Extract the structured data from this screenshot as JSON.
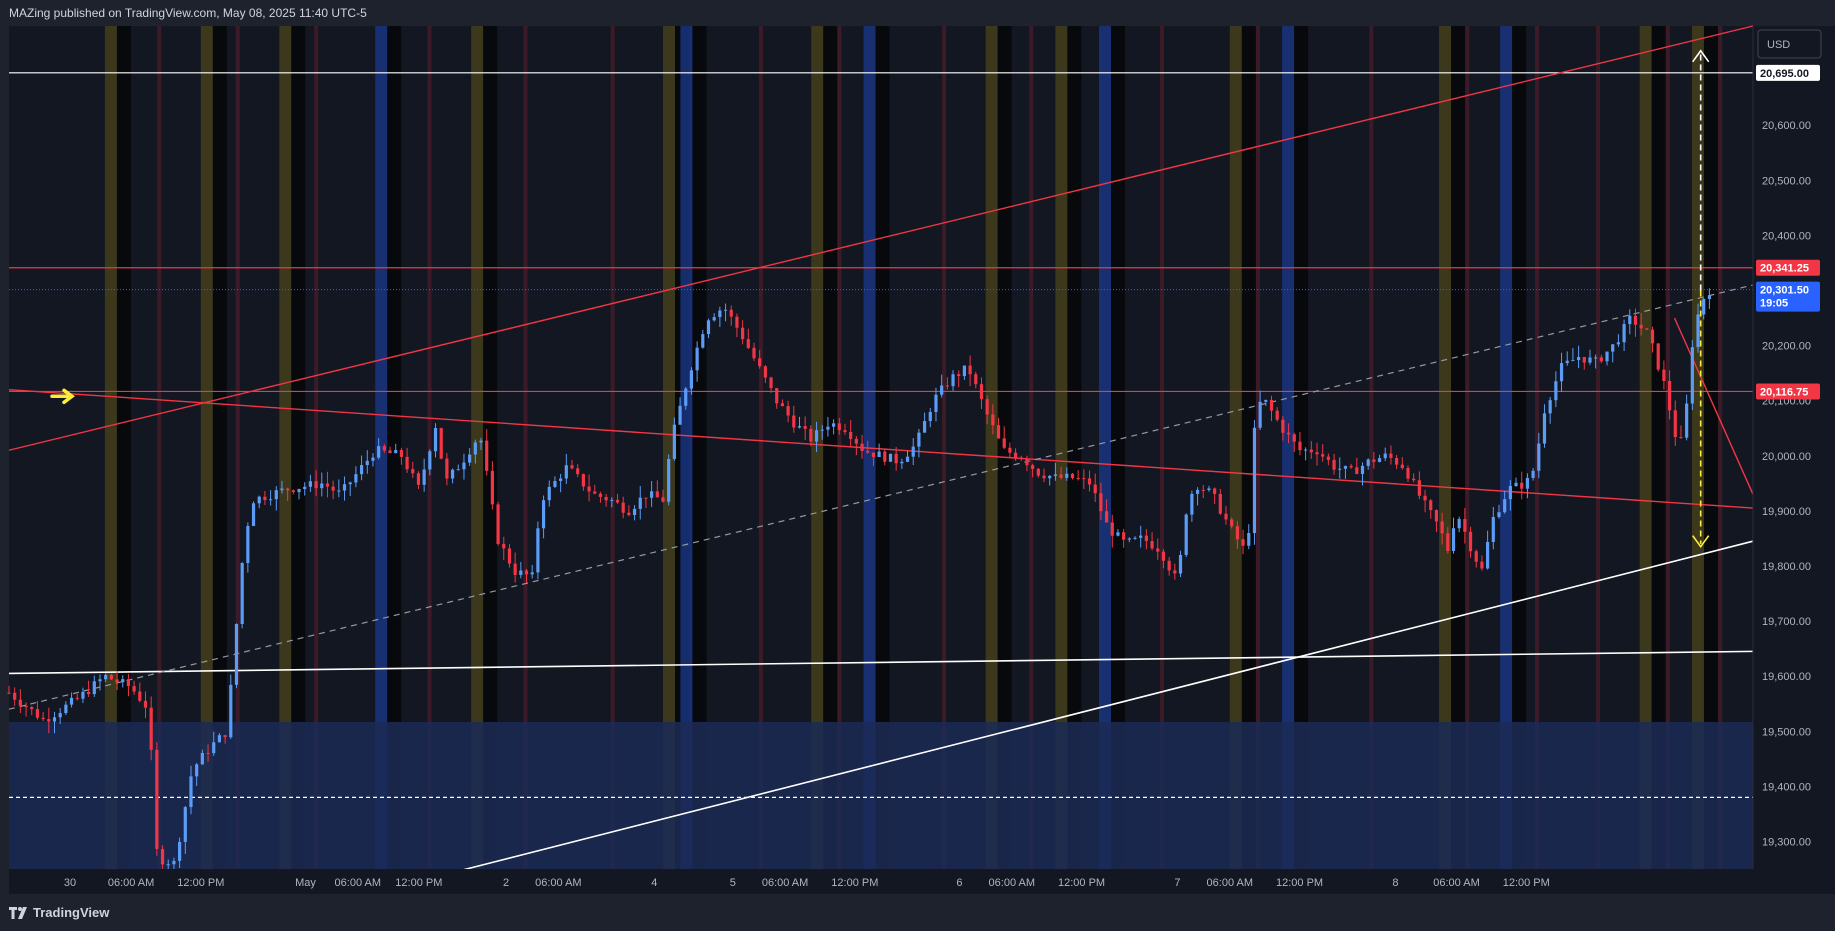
{
  "header": {
    "publish_line": "MAZing published on TradingView.com, May 08, 2025 11:40 UTC-5"
  },
  "footer": {
    "brand": "TradingView"
  },
  "currency_button": {
    "label": "USD"
  },
  "colors": {
    "background": "#131722",
    "bull": "#5b9cf6",
    "bear": "#f23645",
    "red_line": "#f23645",
    "white_line": "#ffffff",
    "last_price_tag": "#2962ff",
    "yellow_arrow": "#ffeb3b",
    "session_yellow": "#4a4419",
    "session_blue": "#1b3a8c",
    "session_red": "#4a1e2a"
  },
  "price_axis": {
    "ticks": [
      "20,600.00",
      "20,500.00",
      "20,400.00",
      "20,200.00",
      "20,100.00",
      "20,000.00",
      "19,900.00",
      "19,800.00",
      "19,700.00",
      "19,600.00",
      "19,500.00",
      "19,400.00",
      "19,300.00"
    ]
  },
  "price_tags": [
    {
      "label": "20,695.00",
      "style": "white"
    },
    {
      "label": "20,341.25",
      "style": "red"
    },
    {
      "label": "20,116.75",
      "style": "red"
    }
  ],
  "last_price": {
    "price": "20,301.50",
    "countdown": "19:05"
  },
  "time_axis": {
    "labels": [
      "30",
      "06:00 AM",
      "12:00 PM",
      "May",
      "06:00 AM",
      "12:00 PM",
      "2",
      "06:00 AM",
      "4",
      "5",
      "06:00 AM",
      "12:00 PM",
      "6",
      "06:00 AM",
      "12:00 PM",
      "7",
      "06:00 AM",
      "12:00 PM",
      "8",
      "06:00 AM",
      "12:00 PM"
    ]
  },
  "chart_data": {
    "type": "candlestick",
    "symbol_currency": "USD",
    "x_labels": [
      "30",
      "06:00 AM",
      "12:00 PM",
      "May",
      "06:00 AM",
      "12:00 PM",
      "2",
      "06:00 AM",
      "4",
      "5",
      "06:00 AM",
      "12:00 PM",
      "6",
      "06:00 AM",
      "12:00 PM",
      "7",
      "06:00 AM",
      "12:00 PM",
      "8",
      "06:00 AM",
      "12:00 PM"
    ],
    "y_range": [
      19250,
      20780
    ],
    "close_path": [
      [
        0,
        19570
      ],
      [
        0.02,
        19520
      ],
      [
        0.04,
        19560
      ],
      [
        0.055,
        19600
      ],
      [
        0.07,
        19580
      ],
      [
        0.08,
        19540
      ],
      [
        0.085,
        19270
      ],
      [
        0.095,
        19260
      ],
      [
        0.105,
        19430
      ],
      [
        0.115,
        19470
      ],
      [
        0.125,
        19500
      ],
      [
        0.13,
        19680
      ],
      [
        0.135,
        19850
      ],
      [
        0.14,
        19920
      ],
      [
        0.16,
        19940
      ],
      [
        0.18,
        19950
      ],
      [
        0.19,
        19930
      ],
      [
        0.2,
        19970
      ],
      [
        0.21,
        20010
      ],
      [
        0.225,
        20000
      ],
      [
        0.235,
        19940
      ],
      [
        0.245,
        20060
      ],
      [
        0.25,
        19950
      ],
      [
        0.26,
        19990
      ],
      [
        0.27,
        20040
      ],
      [
        0.28,
        19850
      ],
      [
        0.29,
        19790
      ],
      [
        0.3,
        19780
      ],
      [
        0.305,
        19920
      ],
      [
        0.32,
        19980
      ],
      [
        0.335,
        19930
      ],
      [
        0.345,
        19920
      ],
      [
        0.355,
        19900
      ],
      [
        0.365,
        19930
      ],
      [
        0.375,
        19920
      ],
      [
        0.38,
        20030
      ],
      [
        0.39,
        20150
      ],
      [
        0.4,
        20250
      ],
      [
        0.41,
        20270
      ],
      [
        0.42,
        20220
      ],
      [
        0.43,
        20160
      ],
      [
        0.44,
        20100
      ],
      [
        0.45,
        20060
      ],
      [
        0.46,
        20030
      ],
      [
        0.47,
        20060
      ],
      [
        0.48,
        20050
      ],
      [
        0.49,
        20010
      ],
      [
        0.5,
        20000
      ],
      [
        0.51,
        19990
      ],
      [
        0.52,
        20020
      ],
      [
        0.53,
        20100
      ],
      [
        0.54,
        20140
      ],
      [
        0.55,
        20160
      ],
      [
        0.56,
        20080
      ],
      [
        0.57,
        20010
      ],
      [
        0.58,
        20000
      ],
      [
        0.59,
        19970
      ],
      [
        0.6,
        19960
      ],
      [
        0.61,
        19960
      ],
      [
        0.62,
        19950
      ],
      [
        0.63,
        19870
      ],
      [
        0.64,
        19840
      ],
      [
        0.65,
        19850
      ],
      [
        0.66,
        19830
      ],
      [
        0.67,
        19770
      ],
      [
        0.675,
        19900
      ],
      [
        0.68,
        19950
      ],
      [
        0.69,
        19930
      ],
      [
        0.7,
        19870
      ],
      [
        0.71,
        19820
      ],
      [
        0.715,
        20090
      ],
      [
        0.72,
        20100
      ],
      [
        0.73,
        20050
      ],
      [
        0.74,
        20010
      ],
      [
        0.75,
        20010
      ],
      [
        0.76,
        19980
      ],
      [
        0.77,
        19970
      ],
      [
        0.78,
        19990
      ],
      [
        0.79,
        20000
      ],
      [
        0.8,
        19980
      ],
      [
        0.81,
        19920
      ],
      [
        0.82,
        19870
      ],
      [
        0.825,
        19830
      ],
      [
        0.83,
        19900
      ],
      [
        0.84,
        19820
      ],
      [
        0.845,
        19790
      ],
      [
        0.85,
        19880
      ],
      [
        0.86,
        19940
      ],
      [
        0.87,
        19950
      ],
      [
        0.875,
        19980
      ],
      [
        0.88,
        20080
      ],
      [
        0.89,
        20160
      ],
      [
        0.9,
        20180
      ],
      [
        0.91,
        20170
      ],
      [
        0.92,
        20200
      ],
      [
        0.93,
        20250
      ],
      [
        0.94,
        20220
      ],
      [
        0.95,
        20120
      ],
      [
        0.955,
        20040
      ],
      [
        0.96,
        20020
      ],
      [
        0.965,
        20200
      ],
      [
        0.97,
        20280
      ],
      [
        0.975,
        20300
      ]
    ],
    "horizontal_levels": [
      {
        "price": 20695.0,
        "color": "white"
      },
      {
        "price": 20341.25,
        "color": "red"
      },
      {
        "price": 20116.75,
        "color": "red"
      },
      {
        "price": 19380.0,
        "color": "white",
        "style": "dashed"
      }
    ],
    "last_price": 20301.5
  }
}
